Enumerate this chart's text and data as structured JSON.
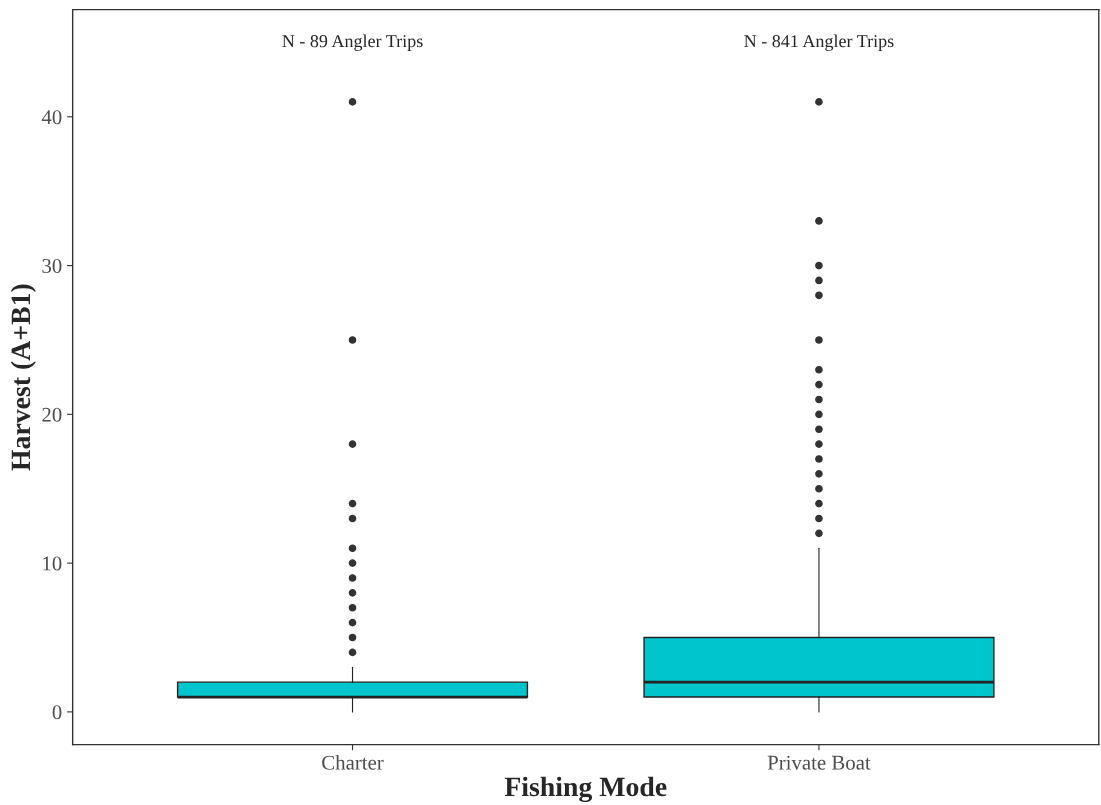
{
  "chart_data": {
    "type": "box",
    "xlabel": "Fishing Mode",
    "ylabel": "Harvest (A+B1)",
    "categories": [
      "Charter",
      "Private Boat"
    ],
    "boxes": [
      {
        "low": 0,
        "q1": 1,
        "median": 1,
        "q3": 2,
        "high": 3,
        "outliers": [
          4,
          5,
          6,
          7,
          8,
          9,
          10,
          11,
          13,
          14,
          18,
          25,
          41
        ]
      },
      {
        "low": 0,
        "q1": 1,
        "median": 2,
        "q3": 5,
        "high": 11,
        "outliers": [
          12,
          13,
          14,
          15,
          16,
          17,
          18,
          19,
          20,
          21,
          22,
          23,
          25,
          28,
          29,
          30,
          33,
          41
        ]
      }
    ],
    "color": "#00c5cd",
    "annotations": [
      "N - 89 Angler Trips",
      "N - 841 Angler Trips"
    ],
    "ylim": [
      -2.2,
      47.2
    ],
    "yticks": [
      0,
      10,
      20,
      30,
      40
    ],
    "grid": false
  }
}
